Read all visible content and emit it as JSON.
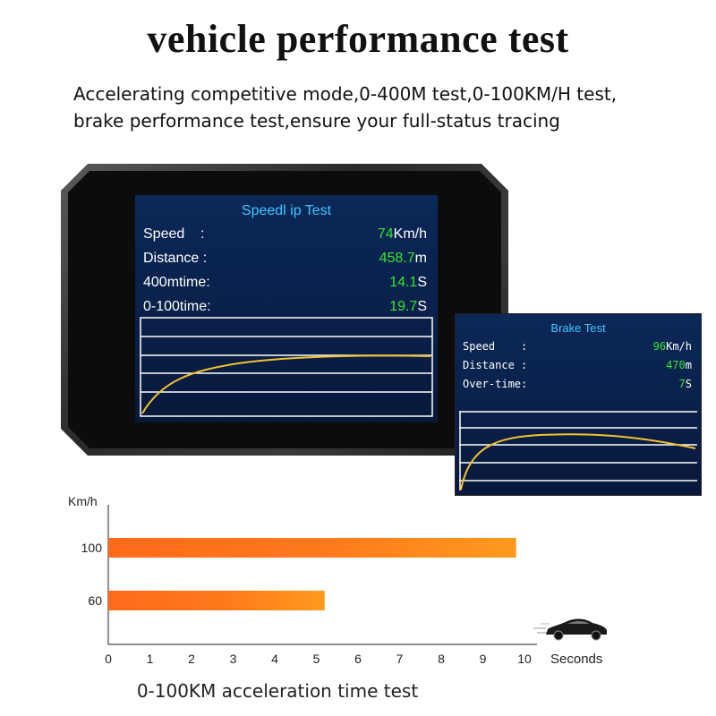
{
  "header": {
    "title": "vehicle performance test",
    "subtitle_line1": "Accelerating competitive mode,0-400M test,0-100KM/H test,",
    "subtitle_line2": "brake performance test,ensure your full-status tracing"
  },
  "speed_up_screen": {
    "title": "Speedl ip Test",
    "rows": [
      {
        "label": "Speed    :",
        "value": "74",
        "unit": "Km/h"
      },
      {
        "label": "Distance :",
        "value": "458.7",
        "unit": "m"
      },
      {
        "label": "400mtime:",
        "value": "14.1",
        "unit": "S"
      },
      {
        "label": "0-100time:",
        "value": "19.7",
        "unit": "S"
      }
    ],
    "colors": {
      "title": "#3cc8ff",
      "value": "#2fe62f",
      "curve": "#f2c230",
      "grid": "#ffffff"
    }
  },
  "brake_screen": {
    "title": "Brake Test",
    "rows": [
      {
        "label": "Speed    :",
        "value": "96",
        "unit": "Km/h"
      },
      {
        "label": "Distance :",
        "value": "470",
        "unit": "m"
      },
      {
        "label": "Over-time:",
        "value": "7",
        "unit": "S"
      }
    ]
  },
  "chart_data": {
    "type": "bar",
    "orientation": "horizontal",
    "ylabel": "Km/h",
    "xlabel": "Seconds",
    "title": "0-100KM acceleration time test",
    "categories": [
      "100",
      "60"
    ],
    "values": [
      9.8,
      5.2
    ],
    "xlim": [
      0,
      10
    ],
    "xticks": [
      "0",
      "1",
      "2",
      "3",
      "4",
      "5",
      "6",
      "7",
      "8",
      "9",
      "10"
    ],
    "bar_color": "#ff6a1a",
    "car_icon": "car-icon"
  }
}
